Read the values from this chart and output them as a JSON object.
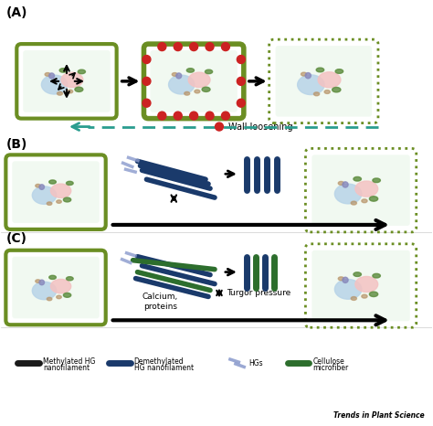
{
  "panel_labels": [
    "(A)",
    "(B)",
    "(C)"
  ],
  "cell_outer_color": "#6b8e23",
  "cell_inner_color": "#e8f5e8",
  "nucleus_color": "#f4c2c2",
  "vacuole_color": "#b8d4e8",
  "teal_color": "#2a9d8f",
  "red_dot_color": "#cc2222",
  "dark_blue_color": "#1a3a6b",
  "green_fiber_color": "#2d6e2d",
  "black_filament_color": "#1a1a1a",
  "hg_color": "#8899cc",
  "legend_labels": [
    "Methylated HG\nnanofilament",
    "Demethylated\nHG nanofilament",
    "HGs",
    "Cellulose\nmicrofiber"
  ],
  "trends_text": "Trends in Plant Science",
  "wall_loosening_text": "Wall loosening",
  "calcium_text": "Calcium,\nproteins",
  "turgor_text": "Turgor pressure"
}
